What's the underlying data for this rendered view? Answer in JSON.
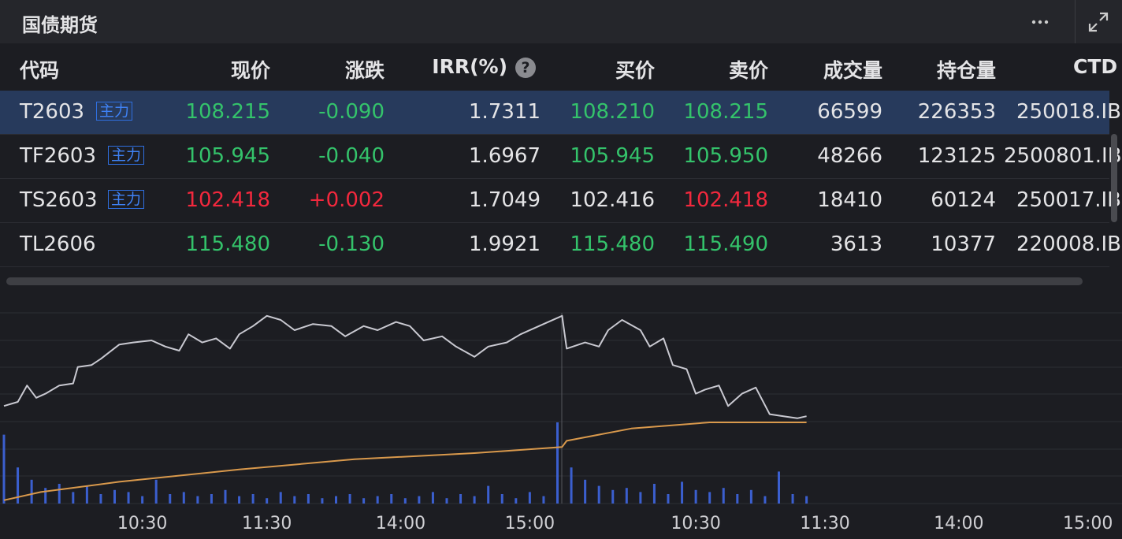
{
  "header": {
    "title": "国债期货"
  },
  "table": {
    "selected": 0,
    "columns": [
      {
        "text": "代码"
      },
      {
        "text": "现价"
      },
      {
        "text": "涨跌"
      },
      {
        "text": "IRR(%)",
        "hint": "?"
      },
      {
        "text": "买价"
      },
      {
        "text": "卖价"
      },
      {
        "text": "成交量"
      },
      {
        "text": "持仓量"
      },
      {
        "text": "CTD"
      }
    ],
    "rows": [
      {
        "code": "T2603",
        "tag": "主力",
        "cells": [
          {
            "text": "108.215",
            "color": "#34c36b"
          },
          {
            "text": "-0.090",
            "color": "#34c36b"
          },
          {
            "text": "1.7311",
            "color": "#e4e4e6"
          },
          {
            "text": "108.210",
            "color": "#34c36b"
          },
          {
            "text": "108.215",
            "color": "#34c36b"
          },
          {
            "text": "66599",
            "color": "#e4e4e6"
          },
          {
            "text": "226353",
            "color": "#e4e4e6"
          },
          {
            "text": "250018.IB",
            "color": "#e4e4e6"
          }
        ]
      },
      {
        "code": "TF2603",
        "tag": "主力",
        "cells": [
          {
            "text": "105.945",
            "color": "#34c36b"
          },
          {
            "text": "-0.040",
            "color": "#34c36b"
          },
          {
            "text": "1.6967",
            "color": "#e4e4e6"
          },
          {
            "text": "105.945",
            "color": "#34c36b"
          },
          {
            "text": "105.950",
            "color": "#34c36b"
          },
          {
            "text": "48266",
            "color": "#e4e4e6"
          },
          {
            "text": "123125",
            "color": "#e4e4e6"
          },
          {
            "text": "2500801.IB",
            "color": "#e4e4e6"
          }
        ]
      },
      {
        "code": "TS2603",
        "tag": "主力",
        "cells": [
          {
            "text": "102.418",
            "color": "#f2283d"
          },
          {
            "text": "+0.002",
            "color": "#f2283d"
          },
          {
            "text": "1.7049",
            "color": "#e4e4e6"
          },
          {
            "text": "102.416",
            "color": "#e4e4e6"
          },
          {
            "text": "102.418",
            "color": "#f2283d"
          },
          {
            "text": "18410",
            "color": "#e4e4e6"
          },
          {
            "text": "60124",
            "color": "#e4e4e6"
          },
          {
            "text": "250017.IB",
            "color": "#e4e4e6"
          }
        ]
      },
      {
        "code": "TL2606",
        "cells": [
          {
            "text": "115.480",
            "color": "#34c36b"
          },
          {
            "text": "-0.130",
            "color": "#34c36b"
          },
          {
            "text": "1.9921",
            "color": "#e4e4e6"
          },
          {
            "text": "115.480",
            "color": "#34c36b"
          },
          {
            "text": "115.490",
            "color": "#34c36b"
          },
          {
            "text": "3613",
            "color": "#e4e4e6"
          },
          {
            "text": "10377",
            "color": "#e4e4e6"
          },
          {
            "text": "220008.IB",
            "color": "#e4e4e6"
          }
        ]
      }
    ]
  },
  "chart_data": {
    "type": "line",
    "xlim": [
      0,
      240
    ],
    "ylim": [
      0,
      100
    ],
    "xticks": [
      {
        "value": 30,
        "label": "10:30"
      },
      {
        "value": 57,
        "label": "11:30"
      },
      {
        "value": 86,
        "label": "14:00"
      },
      {
        "value": 114,
        "label": "15:00"
      },
      {
        "value": 150,
        "label": "10:30"
      },
      {
        "value": 178,
        "label": "11:30"
      },
      {
        "value": 207,
        "label": "14:00"
      },
      {
        "value": 235,
        "label": "15:00"
      }
    ],
    "series": [
      {
        "type": "bar",
        "color": "#3b5fcf",
        "x": [
          0,
          3,
          6,
          9,
          12,
          15,
          18,
          21,
          24,
          27,
          30,
          33,
          36,
          39,
          42,
          45,
          48,
          51,
          54,
          57,
          60,
          63,
          66,
          69,
          72,
          75,
          78,
          81,
          84,
          87,
          90,
          93,
          96,
          99,
          102,
          105,
          108,
          111,
          114,
          117,
          120,
          123,
          126,
          129,
          132,
          135,
          138,
          141,
          144,
          147,
          150,
          153,
          156,
          159,
          162,
          165,
          168,
          171,
          174
        ],
        "values": [
          34,
          18,
          12,
          8,
          10,
          6,
          9,
          5,
          7,
          6,
          4,
          12,
          5,
          6,
          4,
          5,
          7,
          4,
          5,
          3,
          6,
          4,
          5,
          3,
          4,
          5,
          3,
          4,
          5,
          3,
          4,
          6,
          3,
          5,
          4,
          9,
          5,
          3,
          6,
          4,
          40,
          18,
          12,
          9,
          7,
          8,
          6,
          10,
          5,
          11,
          7,
          6,
          8,
          5,
          7,
          4,
          16,
          5,
          4
        ]
      },
      {
        "type": "line",
        "color": "#c9c9d1",
        "x": [
          0,
          3,
          5,
          7,
          9,
          12,
          15,
          16,
          19,
          21,
          25,
          28,
          32,
          35,
          38,
          40,
          43,
          46,
          49,
          51,
          54,
          57,
          60,
          63,
          67,
          71,
          74,
          78,
          81,
          85,
          88,
          91,
          95,
          98,
          102,
          105,
          109,
          112,
          117,
          121,
          122,
          126,
          129,
          131,
          134,
          138,
          140,
          143,
          145,
          148,
          150,
          152,
          155,
          157,
          160,
          163,
          166,
          169,
          172,
          174
        ],
        "values": [
          48,
          50,
          58,
          52,
          54,
          58,
          59,
          67,
          68,
          71,
          78,
          79,
          80,
          77,
          75,
          83,
          79,
          81,
          76,
          83,
          87,
          92,
          90,
          85,
          88,
          87,
          82,
          87,
          85,
          89,
          87,
          80,
          82,
          77,
          72,
          77,
          79,
          83,
          88,
          92,
          76,
          79,
          77,
          85,
          90,
          85,
          77,
          81,
          68,
          66,
          54,
          56,
          58,
          48,
          54,
          57,
          44,
          43,
          42,
          43
        ]
      },
      {
        "type": "line",
        "color": "#d9994c",
        "x": [
          0,
          8,
          25,
          51,
          76,
          102,
          121,
          122,
          136,
          153,
          174
        ],
        "values": [
          2,
          6,
          11,
          17,
          22,
          25,
          28,
          31,
          37,
          40,
          40
        ]
      }
    ]
  }
}
